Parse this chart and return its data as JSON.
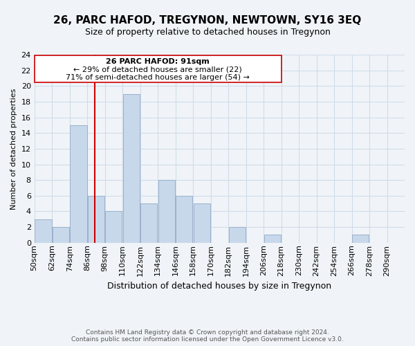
{
  "title": "26, PARC HAFOD, TREGYNON, NEWTOWN, SY16 3EQ",
  "subtitle": "Size of property relative to detached houses in Tregynon",
  "xlabel": "Distribution of detached houses by size in Tregynon",
  "ylabel": "Number of detached properties",
  "bar_color": "#c8d8eb",
  "bar_edge_color": "#9ab0cc",
  "bin_labels": [
    "50sqm",
    "62sqm",
    "74sqm",
    "86sqm",
    "98sqm",
    "110sqm",
    "122sqm",
    "134sqm",
    "146sqm",
    "158sqm",
    "170sqm",
    "182sqm",
    "194sqm",
    "206sqm",
    "218sqm",
    "230sqm",
    "242sqm",
    "254sqm",
    "266sqm",
    "278sqm",
    "290sqm"
  ],
  "bar_heights": [
    3,
    2,
    15,
    6,
    4,
    19,
    5,
    8,
    6,
    5,
    0,
    2,
    0,
    1,
    0,
    0,
    0,
    0,
    1,
    0,
    0
  ],
  "property_line_x": 91,
  "bin_edges_numeric": [
    50,
    62,
    74,
    86,
    98,
    110,
    122,
    134,
    146,
    158,
    170,
    182,
    194,
    206,
    218,
    230,
    242,
    254,
    266,
    278,
    290
  ],
  "bin_width": 12,
  "ylim": [
    0,
    24
  ],
  "yticks": [
    0,
    2,
    4,
    6,
    8,
    10,
    12,
    14,
    16,
    18,
    20,
    22,
    24
  ],
  "annotation_title": "26 PARC HAFOD: 91sqm",
  "annotation_line1": "← 29% of detached houses are smaller (22)",
  "annotation_line2": "71% of semi-detached houses are larger (54) →",
  "annotation_box_color": "#ffffff",
  "annotation_box_edge": "#cc0000",
  "vline_color": "#cc0000",
  "footer1": "Contains HM Land Registry data © Crown copyright and database right 2024.",
  "footer2": "Contains public sector information licensed under the Open Government Licence v3.0.",
  "grid_color": "#d0dce8",
  "background_color": "#f0f4f8",
  "title_fontsize": 11,
  "subtitle_fontsize": 9,
  "ylabel_fontsize": 8,
  "xlabel_fontsize": 9,
  "tick_fontsize": 8,
  "ann_fontsize": 8,
  "footer_fontsize": 6.5
}
